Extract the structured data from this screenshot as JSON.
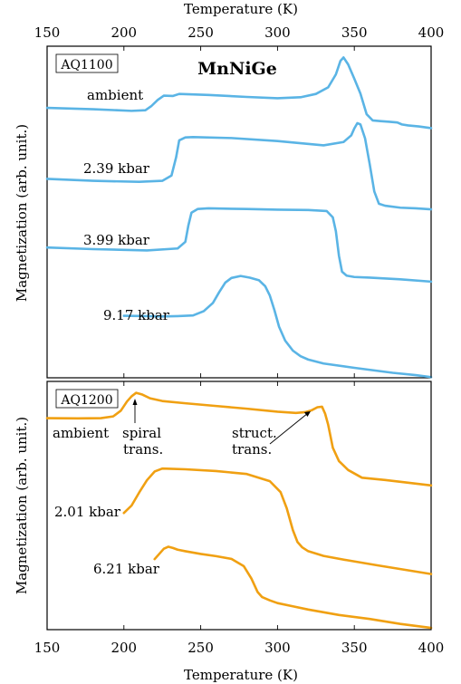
{
  "chart_data": [
    {
      "type": "line",
      "panel": "top",
      "title": "MnNiGe",
      "sample": "AQ1100",
      "xlabel": "Temperature (K)",
      "ylabel": "Magnetization (arb. unit.)",
      "xlim": [
        150,
        400
      ],
      "ylim": [
        0,
        100
      ],
      "x_ticks": [
        "150",
        "200",
        "250",
        "300",
        "350",
        "400"
      ],
      "x_tick_values": [
        150,
        200,
        250,
        300,
        350,
        400
      ],
      "color": "#5ab4e5",
      "series": [
        {
          "name": "ambient",
          "x": [
            150,
            180,
            205,
            214,
            218,
            222,
            226,
            232,
            236,
            255,
            280,
            300,
            315,
            325,
            333,
            338,
            341,
            343,
            346,
            350,
            354,
            358,
            362,
            367,
            373,
            378,
            381,
            385,
            392,
            400
          ],
          "y": [
            81.4,
            81.0,
            80.5,
            80.7,
            82.0,
            83.8,
            85.1,
            85.0,
            85.6,
            85.3,
            84.7,
            84.3,
            84.6,
            85.6,
            87.6,
            91.5,
            95.6,
            96.6,
            94.5,
            90.2,
            85.7,
            79.5,
            77.6,
            77.4,
            77.2,
            77.0,
            76.4,
            76.1,
            75.8,
            75.3
          ]
        },
        {
          "name": "2.39 kbar",
          "x": [
            150,
            180,
            210,
            225,
            231,
            234,
            236,
            240,
            245,
            270,
            300,
            330,
            343,
            348,
            350,
            352,
            354,
            357,
            360,
            363,
            366,
            370,
            380,
            390,
            400
          ],
          "y": [
            60.0,
            59.4,
            59.1,
            59.4,
            61.0,
            66.5,
            71.6,
            72.5,
            72.6,
            72.3,
            71.4,
            70.1,
            71.1,
            73.1,
            75.2,
            76.8,
            76.4,
            72.2,
            64.5,
            56.2,
            52.5,
            51.9,
            51.3,
            51.1,
            50.8
          ]
        },
        {
          "name": "3.99 kbar",
          "x": [
            150,
            180,
            215,
            235,
            240,
            242,
            244,
            248,
            255,
            280,
            300,
            320,
            332,
            336,
            338,
            340,
            342,
            345,
            350,
            360,
            380,
            400
          ],
          "y": [
            39.3,
            38.8,
            38.4,
            39.0,
            41.0,
            46.0,
            49.8,
            50.9,
            51.1,
            50.9,
            50.7,
            50.6,
            50.3,
            48.4,
            44.2,
            36.8,
            32.0,
            30.8,
            30.4,
            30.2,
            29.7,
            29.0
          ]
        },
        {
          "name": "9.17 kbar",
          "x": [
            200,
            215,
            225,
            235,
            245,
            252,
            258,
            262,
            266,
            270,
            276,
            282,
            288,
            292,
            295,
            298,
            301,
            305,
            310,
            315,
            320,
            330,
            350,
            375,
            390,
            400
          ],
          "y": [
            18.7,
            18.6,
            18.5,
            18.6,
            18.8,
            20.1,
            22.6,
            25.8,
            28.7,
            30.1,
            30.7,
            30.2,
            29.4,
            27.6,
            24.8,
            20.4,
            15.4,
            11.2,
            8.2,
            6.5,
            5.5,
            4.3,
            3.0,
            1.5,
            0.8,
            0.2
          ]
        }
      ]
    },
    {
      "type": "line",
      "panel": "bottom",
      "sample": "AQ1200",
      "xlabel": "Temperature (K)",
      "ylabel": "Magnetization (arb. unit.)",
      "xlim": [
        150,
        400
      ],
      "ylim": [
        0,
        100
      ],
      "x_ticks": [
        "150",
        "200",
        "250",
        "300",
        "350",
        "400"
      ],
      "x_tick_values": [
        150,
        200,
        250,
        300,
        350,
        400
      ],
      "color": "#f0a012",
      "annotations": [
        {
          "text": "spiral trans.",
          "line1": "spiral",
          "line2": "trans.",
          "x": 209,
          "y": 95.4
        },
        {
          "text": "struct. trans.",
          "line1": "struct.",
          "line2": "trans.",
          "x": 320,
          "y": 86.9
        }
      ],
      "series": [
        {
          "name": "ambient",
          "x": [
            150,
            170,
            185,
            193,
            198,
            202,
            205,
            208,
            212,
            217,
            225,
            240,
            260,
            280,
            300,
            312,
            318,
            322,
            326,
            329,
            331,
            333,
            336,
            340,
            346,
            355,
            370,
            385,
            400
          ],
          "y": [
            85.2,
            85.1,
            85.2,
            85.9,
            88.2,
            91.9,
            94.0,
            95.4,
            94.7,
            93.2,
            92.1,
            91.2,
            90.1,
            89.0,
            87.8,
            87.3,
            87.6,
            88.3,
            89.6,
            89.8,
            87.0,
            82.5,
            73.3,
            67.9,
            64.3,
            61.2,
            60.3,
            59.2,
            58.1
          ]
        },
        {
          "name": "2.01 kbar",
          "x": [
            200,
            205,
            210,
            215,
            220,
            225,
            230,
            240,
            260,
            280,
            295,
            302,
            306,
            310,
            313,
            316,
            320,
            330,
            345,
            365,
            385,
            400
          ],
          "y": [
            47.0,
            50.0,
            55.3,
            60.2,
            63.7,
            64.9,
            64.8,
            64.6,
            63.9,
            62.7,
            59.8,
            55.4,
            48.9,
            40.1,
            35.3,
            33.2,
            31.6,
            29.7,
            28.0,
            25.9,
            23.9,
            22.4
          ]
        },
        {
          "name": "6.21 kbar",
          "x": [
            220,
            223,
            226,
            229,
            232,
            235,
            240,
            250,
            260,
            270,
            278,
            283,
            287,
            290,
            295,
            300,
            310,
            320,
            340,
            360,
            380,
            400
          ],
          "y": [
            28.4,
            30.5,
            32.6,
            33.4,
            32.9,
            32.2,
            31.6,
            30.5,
            29.6,
            28.5,
            25.6,
            20.6,
            15.2,
            13.1,
            11.8,
            10.7,
            9.4,
            8.1,
            5.9,
            4.3,
            2.3,
            0.7
          ]
        }
      ]
    }
  ]
}
